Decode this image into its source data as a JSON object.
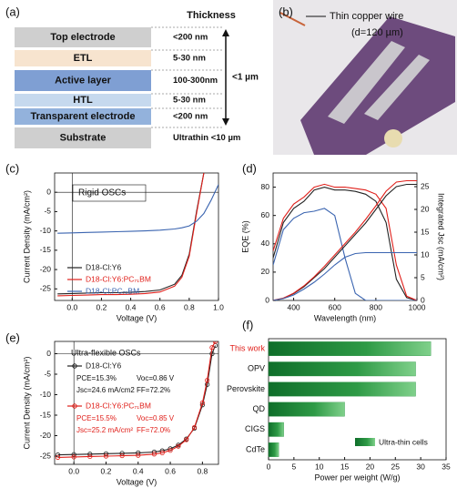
{
  "stack": {
    "label": "(a)",
    "heading": "Thickness",
    "total": "<1 µm",
    "layers": [
      {
        "name": "Top electrode",
        "thickness": "<200 nm",
        "color": "#cfcfcf"
      },
      {
        "name": "ETL",
        "thickness": "5-30 nm",
        "color": "#f7e4cf"
      },
      {
        "name": "Active layer",
        "thickness": "100-300nm",
        "color": "#7f9fd3"
      },
      {
        "name": "HTL",
        "thickness": "5-30 nm",
        "color": "#c6d9ee"
      },
      {
        "name": "Transparent electrode",
        "thickness": "<200 nm",
        "color": "#93b2dc"
      },
      {
        "name": "Substrate",
        "thickness": "Ultrathin <10 µm",
        "color": "#cfcfcf"
      }
    ]
  },
  "photo": {
    "label": "(b)",
    "annotation": "Thin copper wire",
    "detail": "(d=120 µm)"
  },
  "chart_data": [
    {
      "type": "line",
      "label": "(c)",
      "annotation": "Rigid OSCs",
      "xlabel": "Voltage (V)",
      "ylabel": "Current Density (mA/cm²)",
      "x": [
        -0.1,
        0,
        0.1,
        0.2,
        0.3,
        0.4,
        0.5,
        0.6,
        0.7,
        0.75,
        0.8,
        0.85,
        0.9,
        0.95,
        1.0
      ],
      "series": [
        {
          "name": "D18-Cl:Y6",
          "color": "#222222",
          "values": [
            -26.3,
            -26.2,
            -26.1,
            -26,
            -26,
            -25.9,
            -25.7,
            -25.3,
            -23.8,
            -21.5,
            -16,
            -5,
            5,
            null,
            null
          ]
        },
        {
          "name": "D18-Cl:Y6:PC₇₁BM",
          "color": "#e0201b",
          "values": [
            -26.8,
            -26.7,
            -26.6,
            -26.5,
            -26.5,
            -26.4,
            -26.2,
            -25.8,
            -24.3,
            -22,
            -16.5,
            -5.5,
            5,
            null,
            null
          ]
        },
        {
          "name": "D18-Cl:PC₇₁BM",
          "color": "#3a64b0",
          "values": [
            -10.6,
            -10.5,
            -10.4,
            -10.3,
            -10.2,
            -10.1,
            -10,
            -9.8,
            -9.5,
            -9.2,
            -8.7,
            -7.5,
            -5.5,
            -2,
            2
          ]
        }
      ],
      "xlim": [
        -0.12,
        1.0
      ],
      "xticks": [
        {
          "value": 0,
          "label": "0.0"
        },
        0.2,
        0.4,
        0.6,
        0.8,
        {
          "value": 1,
          "label": "1.0"
        }
      ],
      "ylim": [
        -28,
        5
      ],
      "yticks": [
        0,
        -5,
        -10,
        -15,
        -20,
        -25
      ],
      "legend": "lower left"
    },
    {
      "type": "line",
      "label": "(d)",
      "xlabel": "Wavelength (nm)",
      "ylabel": "EQE (%)",
      "y2label": "Integrated Jsc (mA/cm²)",
      "x": [
        300,
        350,
        400,
        450,
        500,
        550,
        600,
        650,
        700,
        750,
        800,
        850,
        900,
        950,
        1000
      ],
      "series": [
        {
          "color": "#222222",
          "values": [
            30,
            55,
            65,
            70,
            78,
            80,
            78,
            78,
            77,
            75,
            70,
            55,
            15,
            2,
            0
          ]
        },
        {
          "color": "#e0201b",
          "values": [
            35,
            58,
            68,
            73,
            80,
            82,
            80,
            80,
            79,
            78,
            75,
            65,
            25,
            3,
            0
          ]
        },
        {
          "color": "#3a64b0",
          "values": [
            25,
            50,
            58,
            62,
            63,
            65,
            60,
            30,
            5,
            0,
            0,
            0,
            0,
            0,
            0
          ]
        },
        {
          "color": "#222222",
          "axis": "y2",
          "values": [
            0,
            0.5,
            1.5,
            3,
            5,
            7,
            9.5,
            12,
            14.5,
            17,
            20,
            23,
            25,
            25.5,
            25.5
          ]
        },
        {
          "color": "#e0201b",
          "axis": "y2",
          "values": [
            0,
            0.5,
            1.6,
            3.2,
            5.2,
            7.5,
            10,
            12.5,
            15,
            17.8,
            20.8,
            24,
            26,
            26.3,
            26.3
          ]
        },
        {
          "color": "#3a64b0",
          "axis": "y2",
          "values": [
            0,
            0.4,
            1.2,
            2.5,
            4,
            5.8,
            7.8,
            9.5,
            10.3,
            10.5,
            10.5,
            10.5,
            10.5,
            10.5,
            10.5
          ]
        }
      ],
      "xlim": [
        300,
        1000
      ],
      "xticks": [
        400,
        600,
        800,
        1000
      ],
      "ylim": [
        0,
        90
      ],
      "yticks": [
        0,
        20,
        40,
        60,
        80
      ],
      "y2lim": [
        0,
        28
      ],
      "y2ticks": [
        0,
        5,
        10,
        15,
        20,
        25
      ]
    },
    {
      "type": "line",
      "label": "(e)",
      "annotation": "Ultra-flexible OSCs",
      "xlabel": "Voltage (V)",
      "ylabel": "Current Density (mA/cm²)",
      "notes": [
        [
          "PCE=15.3%",
          "Voc=0.86 V",
          "Jsc=24.6 mA/cm2",
          "FF=72.2%"
        ],
        [
          "PCE=15.5%",
          "Voc=0.85 V",
          "Jsc=25.2 mA/cm²",
          "FF=72.0%"
        ]
      ],
      "x": [
        -0.1,
        0,
        0.1,
        0.2,
        0.3,
        0.4,
        0.5,
        0.55,
        0.6,
        0.65,
        0.7,
        0.75,
        0.8,
        0.83,
        0.86,
        0.88
      ],
      "series": [
        {
          "name": "D18-Cl:Y6",
          "color": "#222222",
          "marker": "circle",
          "values": [
            -24.7,
            -24.6,
            -24.5,
            -24.4,
            -24.3,
            -24.2,
            -24,
            -23.7,
            -23.2,
            -22.3,
            -20.8,
            -18.2,
            -12.5,
            -7.5,
            0,
            2
          ]
        },
        {
          "name": "D18-Cl:Y6:PC₇₁BM",
          "color": "#e0201b",
          "marker": "circle",
          "values": [
            -25.3,
            -25.2,
            -25.1,
            -25,
            -24.9,
            -24.8,
            -24.5,
            -24.2,
            -23.6,
            -22.6,
            -21,
            -18,
            -12,
            -6.5,
            1.5,
            3
          ]
        }
      ],
      "xlim": [
        -0.12,
        0.9
      ],
      "xticks": [
        {
          "value": 0,
          "label": "0.0"
        },
        0.2,
        0.4,
        0.6,
        0.8
      ],
      "ylim": [
        -27,
        3
      ],
      "yticks": [
        0,
        -5,
        -10,
        -15,
        -20,
        -25
      ],
      "legend": "upper left"
    },
    {
      "type": "barh",
      "label": "(f)",
      "xlabel": "Power per weight (W/g)",
      "legend_label": "Ultra-thin cells",
      "categories": [
        "This work",
        "OPV",
        "Perovskite",
        "QD",
        "CIGS",
        "CdTe"
      ],
      "values": [
        32,
        29,
        29,
        15,
        3,
        2
      ],
      "color": "#1f8b3b",
      "highlight": 0,
      "highlight_color": "#e0201b",
      "xlim": [
        0,
        35
      ],
      "xticks": [
        0,
        5,
        10,
        15,
        20,
        25,
        30,
        35
      ],
      "legend": "lower right"
    }
  ]
}
